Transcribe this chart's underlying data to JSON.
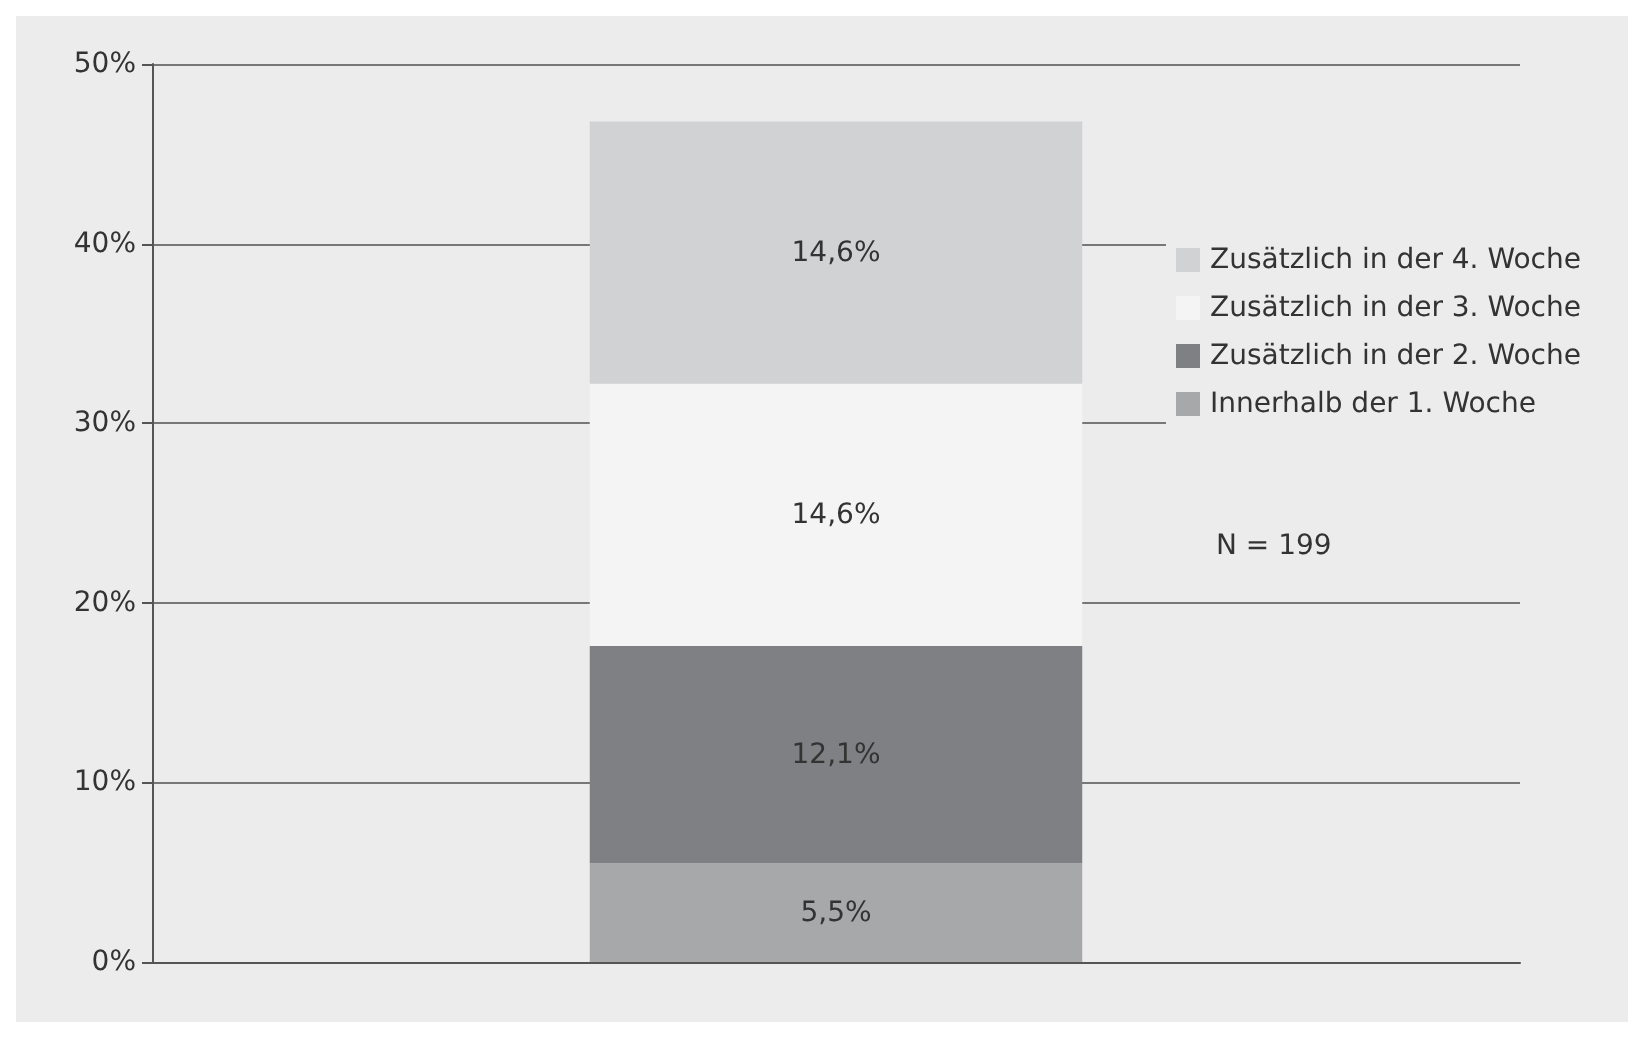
{
  "chart_data": {
    "type": "bar",
    "stacked": true,
    "categories": [
      null
    ],
    "series": [
      {
        "name": "Innerhalb der 1. Woche",
        "color": "#a7a8aa",
        "values": [
          5.5
        ],
        "value_labels": [
          "5,5%"
        ]
      },
      {
        "name": "Zusätzlich in der 2. Woche",
        "color": "#7f8083",
        "values": [
          12.1
        ],
        "value_labels": [
          "12,1%"
        ]
      },
      {
        "name": "Zusätzlich in der 3. Woche",
        "color": "#f4f4f4",
        "values": [
          14.6
        ],
        "value_labels": [
          "14,6%"
        ]
      },
      {
        "name": "Zusätzlich in der 4. Woche",
        "color": "#d1d2d4",
        "values": [
          14.6
        ],
        "value_labels": [
          "14,6%"
        ]
      }
    ],
    "ylim": [
      0,
      50
    ],
    "yticks": [
      {
        "value": 0,
        "label": "0%"
      },
      {
        "value": 10,
        "label": "10%"
      },
      {
        "value": 20,
        "label": "20%"
      },
      {
        "value": 30,
        "label": "30%"
      },
      {
        "value": 40,
        "label": "40%"
      },
      {
        "value": 50,
        "label": "50%"
      }
    ],
    "grid": "y",
    "legend": "right",
    "annotations": [
      "N = 199"
    ]
  }
}
